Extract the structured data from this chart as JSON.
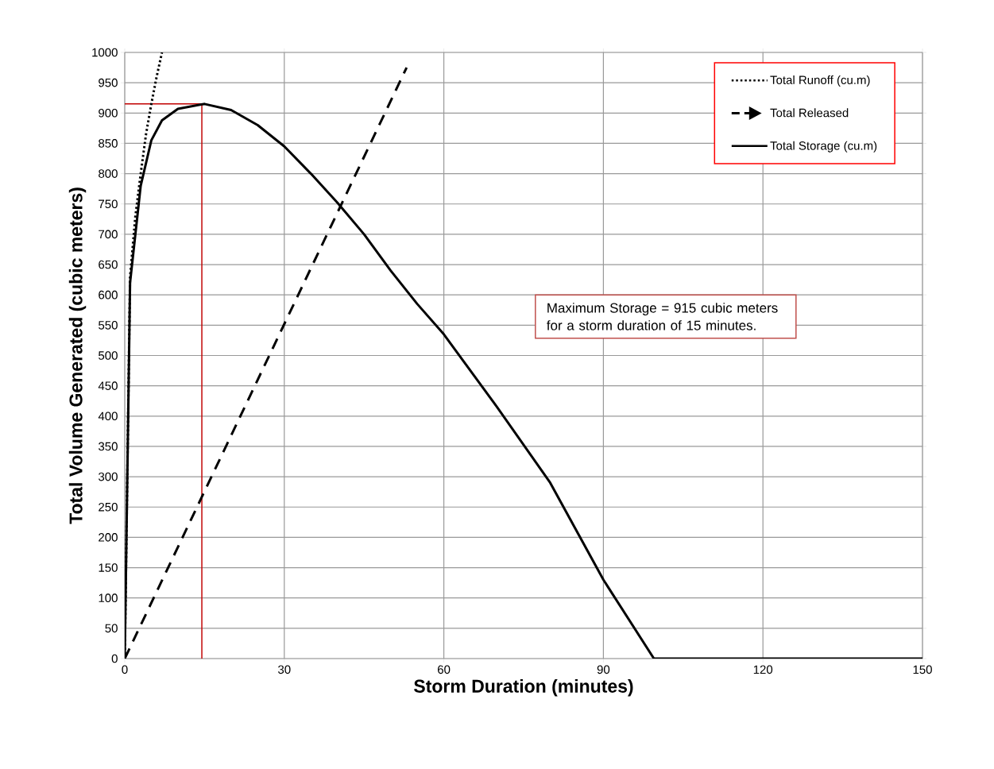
{
  "chart_data": {
    "type": "line",
    "xlabel": "Storm Duration (minutes)",
    "ylabel": "Total Volume Generated (cubic meters)",
    "xlim": [
      0,
      150
    ],
    "xticks": [
      0,
      30,
      60,
      90,
      120,
      150
    ],
    "ylim": [
      0,
      1000
    ],
    "yticks": [
      0,
      50,
      100,
      150,
      200,
      250,
      300,
      350,
      400,
      450,
      500,
      550,
      600,
      650,
      700,
      750,
      800,
      850,
      900,
      950,
      1000
    ],
    "grid": true,
    "legend": "top right",
    "marker": "none",
    "series": [
      {
        "name": "Total Runoff (cu.m)",
        "color": "#000000",
        "line_style": "dotted",
        "x": [
          0,
          1,
          2,
          3,
          4,
          5,
          6,
          7
        ],
        "values": [
          0,
          630,
          730,
          800,
          865,
          915,
          960,
          1000
        ]
      },
      {
        "name": "Total Released",
        "color": "#000000",
        "line_style": "dashed",
        "x": [
          0,
          53
        ],
        "values": [
          0,
          975
        ]
      },
      {
        "name": "Total Storage (cu.m)",
        "color": "#000000",
        "line_style": "solid",
        "x": [
          0,
          1,
          2,
          3,
          5,
          7,
          10,
          15,
          20,
          25,
          30,
          35,
          40,
          45,
          50,
          55,
          60,
          70,
          80,
          90,
          99.5,
          150
        ],
        "values": [
          0,
          620,
          700,
          780,
          855,
          888,
          907,
          915,
          905,
          880,
          845,
          800,
          752,
          700,
          640,
          585,
          535,
          415,
          290,
          130,
          0,
          0
        ]
      }
    ],
    "ref_lines": [
      {
        "axis": "x",
        "value": 14.5,
        "color": "#c00000"
      },
      {
        "axis": "y",
        "value": 915,
        "color": "#c00000"
      }
    ],
    "annotations": [
      "Maximum Storage = 915 cubic meters for a storm duration of 15 minutes."
    ]
  }
}
